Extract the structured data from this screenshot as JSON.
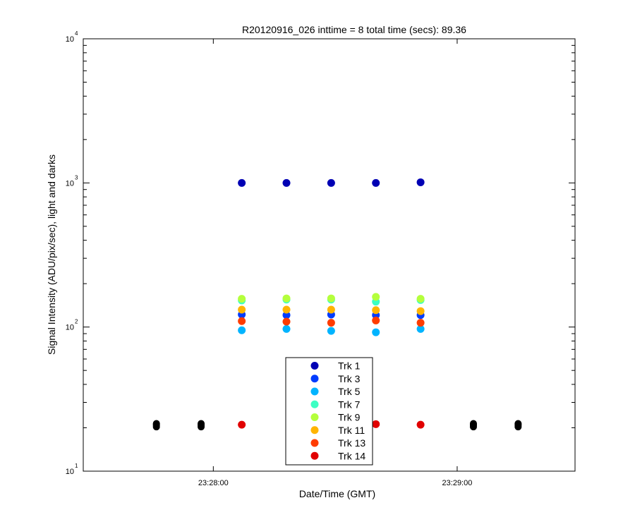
{
  "chart_data": {
    "type": "scatter",
    "title": "R20120916_026 inttime = 8 total time (secs): 89.36",
    "xlabel": "Date/Time (GMT)",
    "ylabel": "Signal Intensity (ADU/pix/sec), light and darks",
    "yscale": "log",
    "ylim": [
      10,
      10000
    ],
    "xlim": [
      "23:27:28",
      "23:29:29"
    ],
    "x_ticks": [
      "23:28:00",
      "23:29:00"
    ],
    "y_ticks": [
      {
        "value": 10,
        "base": "10",
        "exp": "1"
      },
      {
        "value": 100,
        "base": "10",
        "exp": "2"
      },
      {
        "value": 1000,
        "base": "10",
        "exp": "3"
      },
      {
        "value": 10000,
        "base": "10",
        "exp": "4"
      }
    ],
    "grid": false,
    "legend_position": "bottom-center",
    "series": [
      {
        "name": "Trk 1",
        "color": "#0000b4",
        "points": [
          [
            "23:28:07",
            1000
          ],
          [
            "23:28:18",
            1000
          ],
          [
            "23:28:29",
            1000
          ],
          [
            "23:28:40",
            1000
          ],
          [
            "23:28:51",
            1010
          ]
        ]
      },
      {
        "name": "Trk 3",
        "color": "#003cff",
        "points": [
          [
            "23:28:07",
            122
          ],
          [
            "23:28:18",
            121
          ],
          [
            "23:28:29",
            122
          ],
          [
            "23:28:40",
            121
          ],
          [
            "23:28:51",
            121
          ]
        ]
      },
      {
        "name": "Trk 5",
        "color": "#00b4ff",
        "points": [
          [
            "23:28:07",
            95
          ],
          [
            "23:28:18",
            97
          ],
          [
            "23:28:29",
            94
          ],
          [
            "23:28:40",
            92
          ],
          [
            "23:28:51",
            97
          ]
        ]
      },
      {
        "name": "Trk 7",
        "color": "#3cffc3",
        "points": [
          [
            "23:28:07",
            153
          ],
          [
            "23:28:18",
            155
          ],
          [
            "23:28:29",
            155
          ],
          [
            "23:28:40",
            150
          ],
          [
            "23:28:51",
            154
          ]
        ]
      },
      {
        "name": "Trk 9",
        "color": "#b4ff3c",
        "points": [
          [
            "23:28:07",
            157
          ],
          [
            "23:28:18",
            158
          ],
          [
            "23:28:29",
            158
          ],
          [
            "23:28:40",
            162
          ],
          [
            "23:28:51",
            157
          ]
        ]
      },
      {
        "name": "Trk 11",
        "color": "#ffb400",
        "points": [
          [
            "23:28:07",
            132
          ],
          [
            "23:28:18",
            132
          ],
          [
            "23:28:29",
            132
          ],
          [
            "23:28:40",
            131
          ],
          [
            "23:28:51",
            129
          ]
        ]
      },
      {
        "name": "Trk 13",
        "color": "#ff3c00",
        "points": [
          [
            "23:28:07",
            110
          ],
          [
            "23:28:18",
            109
          ],
          [
            "23:28:29",
            107
          ],
          [
            "23:28:40",
            111
          ],
          [
            "23:28:51",
            107
          ]
        ]
      },
      {
        "name": "Trk 14",
        "color": "#e10000",
        "points": [
          [
            "23:28:07",
            21
          ],
          [
            "23:28:40",
            21.2
          ],
          [
            "23:28:51",
            21
          ]
        ]
      }
    ],
    "dark_points": {
      "color": "#000000",
      "x": [
        "23:27:46",
        "23:27:57",
        "23:29:04",
        "23:29:15"
      ],
      "y_values": [
        20.3,
        20.7,
        21.1,
        21.4
      ]
    }
  }
}
